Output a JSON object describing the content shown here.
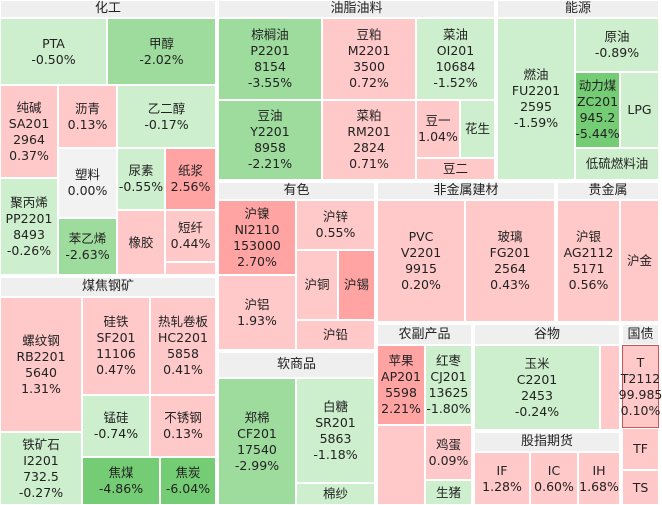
{
  "sectors": [
    {
      "title": "化工",
      "tiles": [
        [
          "PTA",
          "-0.50%"
        ],
        [
          "甲醇",
          "-2.02%"
        ],
        [
          "纯碱",
          "SA201",
          "2964",
          "0.37%"
        ],
        [
          "沥青",
          "0.13%"
        ],
        [
          "乙二醇",
          "-0.17%"
        ],
        [
          "塑料",
          "0.00%"
        ],
        [
          "尿素",
          "-0.55%"
        ],
        [
          "纸浆",
          "2.56%"
        ],
        [
          "聚丙烯",
          "PP2201",
          "8493",
          "-0.26%"
        ],
        [
          "苯乙烯",
          "-2.63%"
        ],
        [
          "橡胶"
        ],
        [
          "短纤",
          "0.44%"
        ],
        []
      ]
    },
    {
      "title": "煤焦钢矿",
      "tiles": [
        [
          "螺纹钢",
          "RB2201",
          "5640",
          "1.31%"
        ],
        [
          "硅铁",
          "SF201",
          "11106",
          "0.47%"
        ],
        [
          "热轧卷板",
          "HC2201",
          "5858",
          "0.41%"
        ],
        [
          "锰硅",
          "-0.74%"
        ],
        [
          "不锈钢",
          "0.13%"
        ],
        [
          "铁矿石",
          "I2201",
          "732.5",
          "-0.27%"
        ],
        [
          "焦煤",
          "-4.86%"
        ],
        [
          "焦炭",
          "-6.04%"
        ]
      ]
    },
    {
      "title": "油脂油料",
      "tiles": [
        [
          "棕榈油",
          "P2201",
          "8154",
          "-3.55%"
        ],
        [
          "豆粕",
          "M2201",
          "3500",
          "0.72%"
        ],
        [
          "菜油",
          "OI201",
          "10684",
          "-1.52%"
        ],
        [
          "豆油",
          "Y2201",
          "8958",
          "-2.21%"
        ],
        [
          "菜粕",
          "RM201",
          "2824",
          "0.71%"
        ],
        [
          "豆一",
          "1.04%"
        ],
        [
          "花生"
        ],
        [
          "豆二"
        ]
      ]
    },
    {
      "title": "能源",
      "tiles": [
        [
          "燃油",
          "FU2201",
          "2595",
          "-1.59%"
        ],
        [
          "原油",
          "-0.89%"
        ],
        [
          "动力煤",
          "ZC201",
          "945.2",
          "-5.44%"
        ],
        [
          "LPG"
        ],
        [
          "低硫燃料油"
        ]
      ]
    },
    {
      "title": "有色",
      "tiles": [
        [
          "沪镍",
          "NI2110",
          "153000",
          "2.70%"
        ],
        [
          "沪锌",
          "0.55%"
        ],
        [
          "沪铜"
        ],
        [
          "沪锡"
        ],
        [
          "沪铝",
          "1.93%"
        ],
        [
          "沪铅"
        ]
      ]
    },
    {
      "title": "软商品",
      "tiles": [
        [
          "郑棉",
          "CF201",
          "17540",
          "-2.99%"
        ],
        [
          "白糖",
          "SR201",
          "5863",
          "-1.18%"
        ],
        [
          "棉纱"
        ]
      ]
    },
    {
      "title": "非金属建材",
      "tiles": [
        [
          "PVC",
          "V2201",
          "9915",
          "0.20%"
        ],
        [
          "玻璃",
          "FG201",
          "2564",
          "0.43%"
        ]
      ]
    },
    {
      "title": "贵金属",
      "tiles": [
        [
          "沪银",
          "AG2112",
          "5171",
          "0.56%"
        ],
        [
          "沪金"
        ]
      ]
    },
    {
      "title": "农副产品",
      "tiles": [
        [
          "苹果",
          "AP201",
          "5598",
          "2.21%"
        ],
        [
          "红枣",
          "CJ201",
          "13625",
          "-1.80%"
        ],
        [],
        [
          "鸡蛋",
          "0.09%"
        ],
        [
          "生猪"
        ]
      ]
    },
    {
      "title": "谷物",
      "tiles": [
        [
          "玉米",
          "C2201",
          "2453",
          "-0.24%"
        ],
        []
      ]
    },
    {
      "title": "国债",
      "tiles": [
        [
          "T",
          "T2112",
          "99.985",
          "0.10%"
        ],
        [
          "TF"
        ],
        [
          "TS"
        ]
      ]
    },
    {
      "title": "股指期货",
      "tiles": [
        [
          "IF",
          "1.28%"
        ],
        [
          "IC",
          "0.60%"
        ],
        [
          "IH",
          "1.68%"
        ]
      ]
    }
  ]
}
